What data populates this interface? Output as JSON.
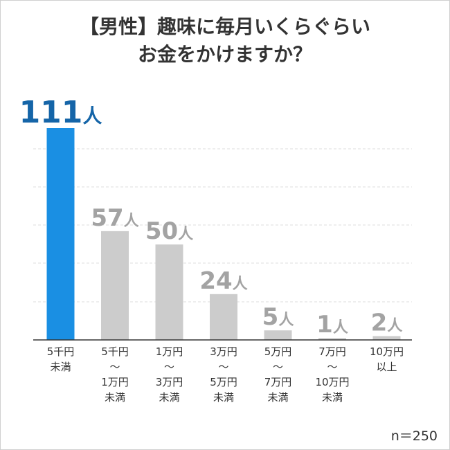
{
  "title_line1": "【男性】趣味に毎月いくらぐらい",
  "title_line2": "お金をかけますか？",
  "note": "n＝250",
  "unit": "人",
  "colors": {
    "highlight": "#1a8fe3",
    "highlight_label": "#1565a8",
    "bar": "#cccccc",
    "bar_label": "#a3a3a3",
    "grid": "#dcdcdc",
    "axis": "#333333",
    "text": "#333333"
  },
  "chart_data": {
    "type": "bar",
    "title": "【男性】趣味に毎月いくらぐらいお金をかけますか？",
    "categories": [
      [
        "5千円",
        "未満"
      ],
      [
        "5千円",
        "〜",
        "1万円",
        "未満"
      ],
      [
        "1万円",
        "〜",
        "3万円",
        "未満"
      ],
      [
        "3万円",
        "〜",
        "5万円",
        "未満"
      ],
      [
        "5万円",
        "〜",
        "7万円",
        "未満"
      ],
      [
        "7万円",
        "〜",
        "10万円",
        "未満"
      ],
      [
        "10万円",
        "以上"
      ]
    ],
    "values": [
      111,
      57,
      50,
      24,
      5,
      1,
      2
    ],
    "highlight_index": 0,
    "ylim": [
      0,
      111
    ],
    "grid": true
  }
}
